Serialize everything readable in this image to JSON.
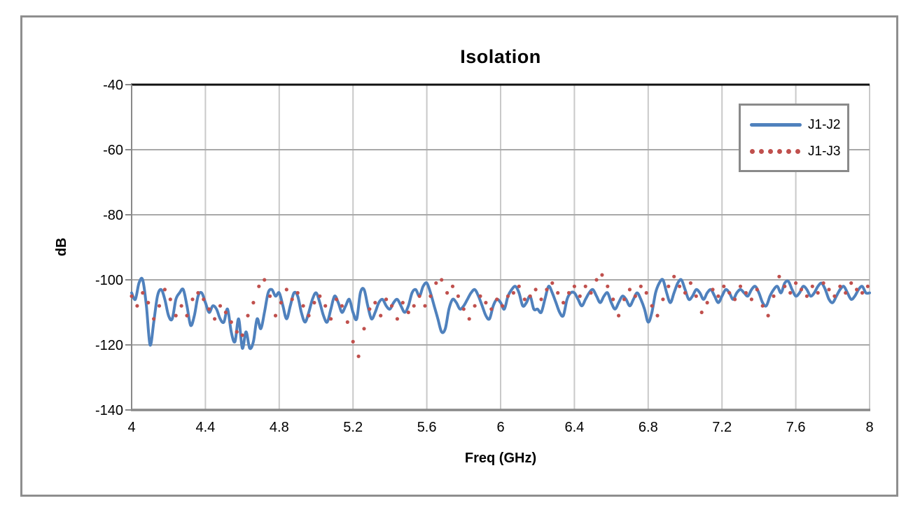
{
  "window": {
    "background_color": "#ffffff",
    "frame_border_color": "#8e8e8e"
  },
  "colors": {
    "series1": "#4f81bd",
    "series2": "#c0504d",
    "axis_line": "#898989",
    "grid_vertical": "#c9c9c9",
    "grid_horizontal": "#a8a8a8",
    "plot_top_border": "#111111",
    "tick_label": "#000000"
  },
  "legend": {
    "position": "top-right-inside",
    "items": [
      {
        "label": "J1-J2",
        "marker": "solid-line"
      },
      {
        "label": "J1-J3",
        "marker": "dotted"
      }
    ]
  },
  "chart_data": {
    "type": "line",
    "title": "Isolation",
    "xlabel": "Freq (GHz)",
    "ylabel": "dB",
    "xlim": [
      4,
      8
    ],
    "ylim": [
      -140,
      -40
    ],
    "grid": true,
    "x_ticks": [
      4,
      4.4,
      4.8,
      5.2,
      5.6,
      6,
      6.4,
      6.8,
      7.2,
      7.6,
      8
    ],
    "x_tick_labels": [
      "4",
      "4.4",
      "4.8",
      "5.2",
      "5.6",
      "6",
      "6.4",
      "6.8",
      "7.2",
      "7.6",
      "8"
    ],
    "y_ticks": [
      -40,
      -60,
      -80,
      -100,
      -120,
      -140
    ],
    "y_tick_labels": [
      "-40",
      "-60",
      "-80",
      "-100",
      "-120",
      "-140"
    ],
    "legend_position": "top-right-inside",
    "series": [
      {
        "name": "J1-J2",
        "style": "solid-line",
        "color": "#4f81bd",
        "x_start": 4.0,
        "x_step": 0.02,
        "values": [
          -104,
          -106,
          -101,
          -100,
          -108,
          -120,
          -113,
          -105,
          -103,
          -106,
          -111,
          -112,
          -106,
          -104,
          -103,
          -108,
          -114,
          -111,
          -105,
          -104,
          -107,
          -110,
          -108,
          -109,
          -112,
          -113,
          -109,
          -116,
          -119,
          -112,
          -121,
          -116,
          -121,
          -119,
          -112,
          -115,
          -110,
          -104,
          -103,
          -105,
          -104,
          -108,
          -112,
          -108,
          -104,
          -105,
          -110,
          -113,
          -110,
          -106,
          -104,
          -107,
          -111,
          -113,
          -109,
          -105,
          -107,
          -110,
          -108,
          -106,
          -110,
          -112,
          -104,
          -103,
          -108,
          -112,
          -110,
          -107,
          -106,
          -108,
          -109,
          -107,
          -106,
          -108,
          -110,
          -108,
          -104,
          -103,
          -105,
          -102,
          -101,
          -104,
          -108,
          -112,
          -116,
          -115,
          -109,
          -106,
          -107,
          -109,
          -108,
          -106,
          -104,
          -103,
          -105,
          -108,
          -111,
          -112,
          -108,
          -106,
          -107,
          -109,
          -105,
          -103,
          -102,
          -104,
          -108,
          -107,
          -105,
          -109,
          -109,
          -110,
          -106,
          -102,
          -104,
          -107,
          -110,
          -111,
          -106,
          -104,
          -104,
          -106,
          -108,
          -106,
          -104,
          -103,
          -105,
          -107,
          -105,
          -104,
          -107,
          -109,
          -107,
          -105,
          -106,
          -108,
          -106,
          -104,
          -106,
          -109,
          -113,
          -110,
          -104,
          -101,
          -100,
          -104,
          -107,
          -104,
          -101,
          -100,
          -103,
          -106,
          -105,
          -103,
          -104,
          -106,
          -104,
          -103,
          -105,
          -107,
          -105,
          -103,
          -104,
          -106,
          -104,
          -103,
          -104,
          -105,
          -103,
          -102,
          -104,
          -107,
          -108,
          -105,
          -103,
          -102,
          -104,
          -101,
          -100.5,
          -103,
          -105,
          -104,
          -102,
          -103,
          -105,
          -104,
          -102,
          -101,
          -103,
          -106,
          -107,
          -105,
          -103,
          -102,
          -104,
          -106,
          -105,
          -103,
          -102,
          -104,
          -104
        ]
      },
      {
        "name": "J1-J3",
        "style": "dotted",
        "color": "#c0504d",
        "x_start": 4.0,
        "x_step": 0.03,
        "values": [
          -105,
          -108,
          -104,
          -107,
          -112,
          -108,
          -103,
          -106,
          -111,
          -108,
          -111,
          -106,
          -104,
          -106,
          -109,
          -112,
          -108,
          -110,
          -113,
          -116,
          -117,
          -111,
          -107,
          -102,
          -100,
          -105,
          -111,
          -107,
          -103,
          -106,
          -104,
          -108,
          -111,
          -107,
          -105,
          -108,
          -112,
          -106,
          -108,
          -113,
          -119,
          -123.5,
          -115,
          -109,
          -107,
          -111,
          -106,
          -108,
          -112,
          -107,
          -110,
          -108,
          -105,
          -108,
          -105,
          -101,
          -100,
          -104,
          -102,
          -105,
          -109,
          -112,
          -108,
          -105,
          -107,
          -109,
          -106,
          -108,
          -105,
          -104,
          -102,
          -106,
          -105,
          -103,
          -106,
          -103,
          -101,
          -104,
          -107,
          -104,
          -102,
          -105,
          -102,
          -104,
          -100,
          -98.5,
          -102,
          -106,
          -111,
          -106,
          -103,
          -105,
          -102,
          -104,
          -108,
          -111,
          -106,
          -102,
          -99,
          -102,
          -104,
          -101,
          -105,
          -110,
          -107,
          -103,
          -105,
          -102,
          -104,
          -106,
          -102,
          -104,
          -106,
          -103,
          -108,
          -111,
          -105,
          -99,
          -102,
          -104,
          -101,
          -103,
          -105,
          -102,
          -104,
          -101,
          -103,
          -105,
          -102,
          -104,
          -101,
          -103,
          -104,
          -102
        ]
      }
    ]
  }
}
